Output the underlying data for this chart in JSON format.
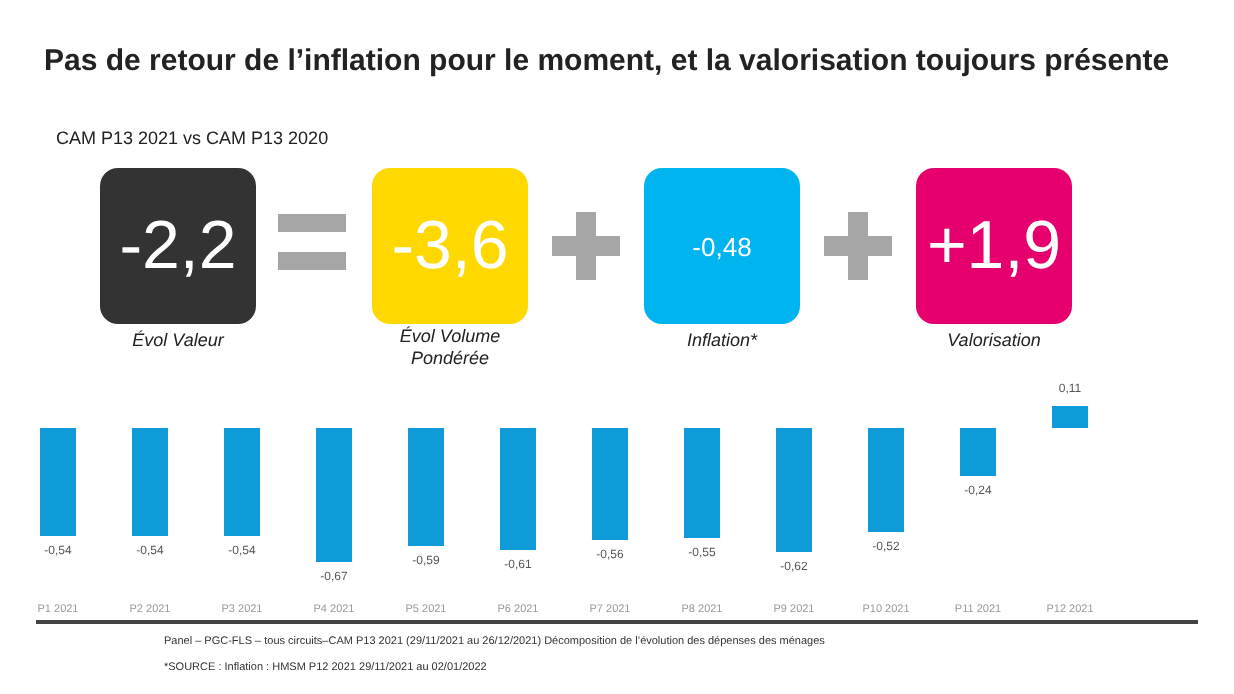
{
  "chart_data": [
    {
      "type": "other",
      "title": "Pas de retour de l’inflation pour le moment, et la valorisation toujours présente",
      "subtitle": "CAM P13 2021 vs CAM P13 2020",
      "annotations": [
        "-2,2",
        "Évol Valeur",
        "-3,6",
        "Évol Volume Pondérée",
        "-0,48",
        "Inflation*",
        "+1,9",
        "Valorisation"
      ],
      "colors": [
        "#333333",
        "#ffd800",
        "#00b4f0",
        "#e6006e"
      ]
    },
    {
      "type": "bar",
      "categories": [
        "P1 2021",
        "P2 2021",
        "P3 2021",
        "P4 2021",
        "P5 2021",
        "P6 2021",
        "P7 2021",
        "P8 2021",
        "P9 2021",
        "P10 2021",
        "P11 2021",
        "P12 2021"
      ],
      "values": [
        -0.54,
        -0.54,
        -0.54,
        -0.67,
        -0.59,
        -0.61,
        -0.56,
        -0.55,
        -0.62,
        -0.52,
        -0.24,
        0.11
      ],
      "color": "#0e9bd8",
      "value_labels": [
        "-0,54",
        "-0,54",
        "-0,54",
        "-0,67",
        "-0,59",
        "-0,61",
        "-0,56",
        "-0,55",
        "-0,62",
        "-0,52",
        "-0,24",
        "0,11"
      ],
      "annotations": [
        "Panel – PGC-FLS – tous circuits–CAM P13 2021 (29/11/2021 au 26/12/2021) Décomposition de l’évolution des dépenses des ménages",
        "*SOURCE : Inflation : HMSM P12 2021 29/11/2021 au 02/01/2022"
      ]
    }
  ]
}
